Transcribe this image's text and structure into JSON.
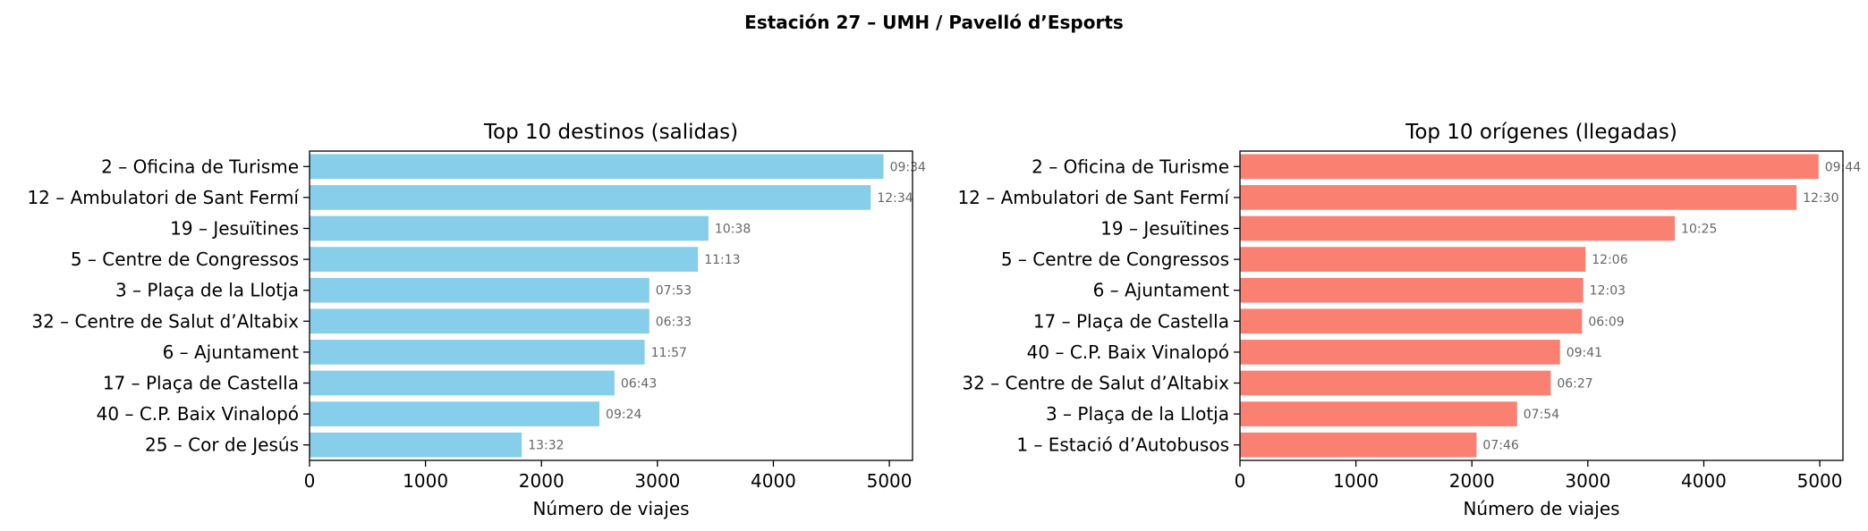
{
  "figure": {
    "suptitle": "Estación 27 – UMH / Pavelló d’Esports"
  },
  "chart_data": [
    {
      "type": "bar",
      "orientation": "horizontal",
      "title": "Top 10 destinos (salidas)",
      "xlabel": "Número de viajes",
      "ylabel": "",
      "xlim": [
        0,
        5200
      ],
      "xticks": [
        0,
        1000,
        2000,
        3000,
        4000,
        5000
      ],
      "color": "#87ceeb",
      "categories": [
        "2 – Oficina de Turisme",
        "12 – Ambulatori de Sant Fermí",
        "19 – Jesuïtines",
        "5 – Centre de Congressos",
        "3 – Plaça de la Llotja",
        "32 – Centre de Salut d’Altabix",
        "6 – Ajuntament",
        "17 – Plaça de Castella",
        "40 – C.P. Baix Vinalopó",
        "25 – Cor de Jesús"
      ],
      "values": [
        4950,
        4840,
        3440,
        3350,
        2930,
        2930,
        2890,
        2630,
        2500,
        1830
      ],
      "data_labels": [
        "09:34",
        "12:34",
        "10:38",
        "11:13",
        "07:53",
        "06:33",
        "11:57",
        "06:43",
        "09:24",
        "13:32"
      ]
    },
    {
      "type": "bar",
      "orientation": "horizontal",
      "title": "Top 10 orígenes (llegadas)",
      "xlabel": "Número de viajes",
      "ylabel": "",
      "xlim": [
        0,
        5200
      ],
      "xticks": [
        0,
        1000,
        2000,
        3000,
        4000,
        5000
      ],
      "color": "#fa8072",
      "categories": [
        "2 – Oficina de Turisme",
        "12 – Ambulatori de Sant Fermí",
        "19 – Jesuïtines",
        "5 – Centre de Congressos",
        "6 – Ajuntament",
        "17 – Plaça de Castella",
        "40 – C.P. Baix Vinalopó",
        "32 – Centre de Salut d’Altabix",
        "3 – Plaça de la Llotja",
        "1 – Estació d’Autobusos"
      ],
      "values": [
        4990,
        4800,
        3750,
        2980,
        2960,
        2950,
        2760,
        2680,
        2390,
        2040
      ],
      "data_labels": [
        "09:44",
        "12:30",
        "10:25",
        "12:06",
        "12:03",
        "06:09",
        "09:41",
        "06:27",
        "07:54",
        "07:46"
      ]
    }
  ]
}
